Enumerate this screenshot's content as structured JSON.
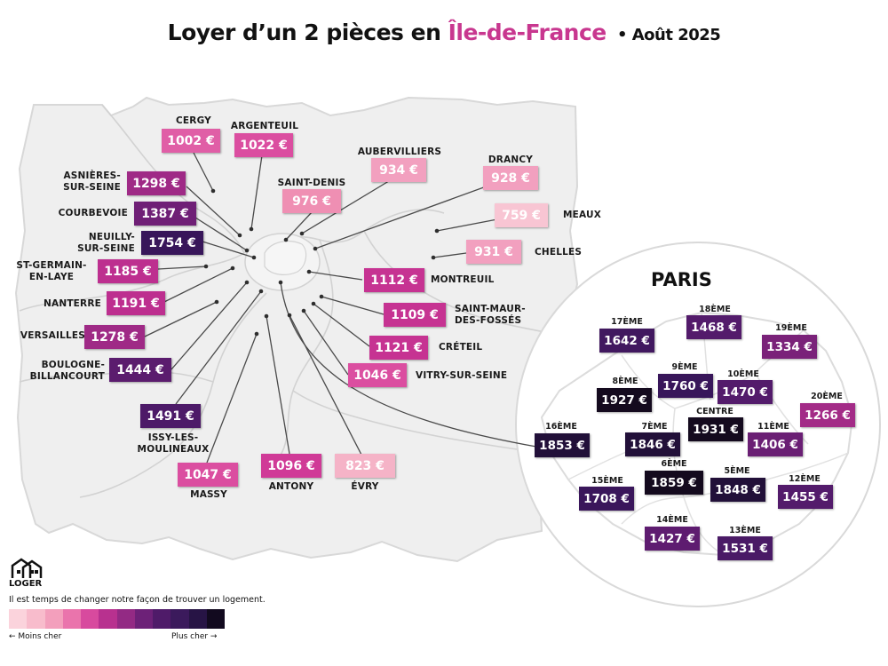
{
  "header": {
    "title_prefix": "Loyer d’un 2 pièces en ",
    "title_region": "Île-de-France",
    "title_date": "• Août 2025"
  },
  "colors": {
    "region_accent": "#c8378f",
    "map_fill": "#efefef",
    "map_lines": "#d2d2d2"
  },
  "suburbs": [
    {
      "name": "CERGY",
      "price": "1002 €",
      "color": "#e05ea6"
    },
    {
      "name": "ARGENTEUIL",
      "price": "1022 €",
      "color": "#db4ea0"
    },
    {
      "name": "AUBERVILLIERS",
      "price": "934 €",
      "color": "#f2a0bf"
    },
    {
      "name": "DRANCY",
      "price": "928 €",
      "color": "#f2a0bf"
    },
    {
      "name": "ASNIÈRES-\nSUR-SEINE",
      "price": "1298 €",
      "color": "#9f2a86"
    },
    {
      "name": "SAINT-DENIS",
      "price": "976 €",
      "color": "#ef8fb3"
    },
    {
      "name": "COURBEVOIE",
      "price": "1387 €",
      "color": "#6f1f76"
    },
    {
      "name": "MEAUX",
      "price": "759 €",
      "color": "#f8c5d3"
    },
    {
      "name": "NEUILLY-\nSUR-SEINE",
      "price": "1754 €",
      "color": "#38165a"
    },
    {
      "name": "CHELLES",
      "price": "931 €",
      "color": "#f2a0bf"
    },
    {
      "name": "ST-GERMAIN-\nEN-LAYE",
      "price": "1185 €",
      "color": "#bd2f8f"
    },
    {
      "name": "MONTREUIL",
      "price": "1112 €",
      "color": "#c63392"
    },
    {
      "name": "NANTERRE",
      "price": "1191 €",
      "color": "#bd2f8f"
    },
    {
      "name": "SAINT-MAUR-\nDES-FOSSÉS",
      "price": "1109 €",
      "color": "#c63392"
    },
    {
      "name": "VERSAILLES",
      "price": "1278 €",
      "color": "#9f2a86"
    },
    {
      "name": "CRÉTEIL",
      "price": "1121 €",
      "color": "#c63392"
    },
    {
      "name": "VITRY-SUR-SEINE",
      "price": "1046 €",
      "color": "#db4ea0"
    },
    {
      "name": "BOULOGNE-\nBILLANCOURT",
      "price": "1444 €",
      "color": "#5b1c6e"
    },
    {
      "name": "ISSY-LES-\nMOULINEAUX",
      "price": "1491 €",
      "color": "#4d1a68"
    },
    {
      "name": "MASSY",
      "price": "1047 €",
      "color": "#db4ea0"
    },
    {
      "name": "ANTONY",
      "price": "1096 €",
      "color": "#d03a97"
    },
    {
      "name": "ÉVRY",
      "price": "823 €",
      "color": "#f5b3c7"
    }
  ],
  "paris": {
    "title": "PARIS",
    "districts": [
      {
        "name": "17ÈME",
        "price": "1642 €",
        "color": "#41185f"
      },
      {
        "name": "18ÈME",
        "price": "1468 €",
        "color": "#531b6b"
      },
      {
        "name": "19ÈME",
        "price": "1334 €",
        "color": "#7a2279"
      },
      {
        "name": "8ÈME",
        "price": "1927 €",
        "color": "#140a1e"
      },
      {
        "name": "9ÈME",
        "price": "1760 €",
        "color": "#38165a"
      },
      {
        "name": "10ÈME",
        "price": "1470 €",
        "color": "#531b6b"
      },
      {
        "name": "20ÈME",
        "price": "1266 €",
        "color": "#a32b87"
      },
      {
        "name": "CENTRE",
        "price": "1931 €",
        "color": "#140a1e"
      },
      {
        "name": "16ÈME",
        "price": "1853 €",
        "color": "#221039"
      },
      {
        "name": "7ÈME",
        "price": "1846 €",
        "color": "#221039"
      },
      {
        "name": "11ÈME",
        "price": "1406 €",
        "color": "#6a1f74"
      },
      {
        "name": "6ÈME",
        "price": "1859 €",
        "color": "#140a1e"
      },
      {
        "name": "15ÈME",
        "price": "1708 €",
        "color": "#3a165b"
      },
      {
        "name": "5ÈME",
        "price": "1848 €",
        "color": "#221039"
      },
      {
        "name": "12ÈME",
        "price": "1455 €",
        "color": "#531b6b"
      },
      {
        "name": "14ÈME",
        "price": "1427 €",
        "color": "#5e1c70"
      },
      {
        "name": "13ÈME",
        "price": "1531 €",
        "color": "#4a1a66"
      }
    ]
  },
  "brand": {
    "name": "LOGER",
    "tagline": "Il est temps de changer notre façon de trouver un logement."
  },
  "legend": {
    "low_label": "← Moins cher",
    "high_label": "Plus cher →",
    "colors": [
      "#fbd3dc",
      "#f8bccc",
      "#f39fbc",
      "#ea74ac",
      "#d84a9e",
      "#b8318f",
      "#932a84",
      "#6d2178",
      "#4f1b69",
      "#3b1a5c",
      "#271445",
      "#120a1f"
    ]
  }
}
